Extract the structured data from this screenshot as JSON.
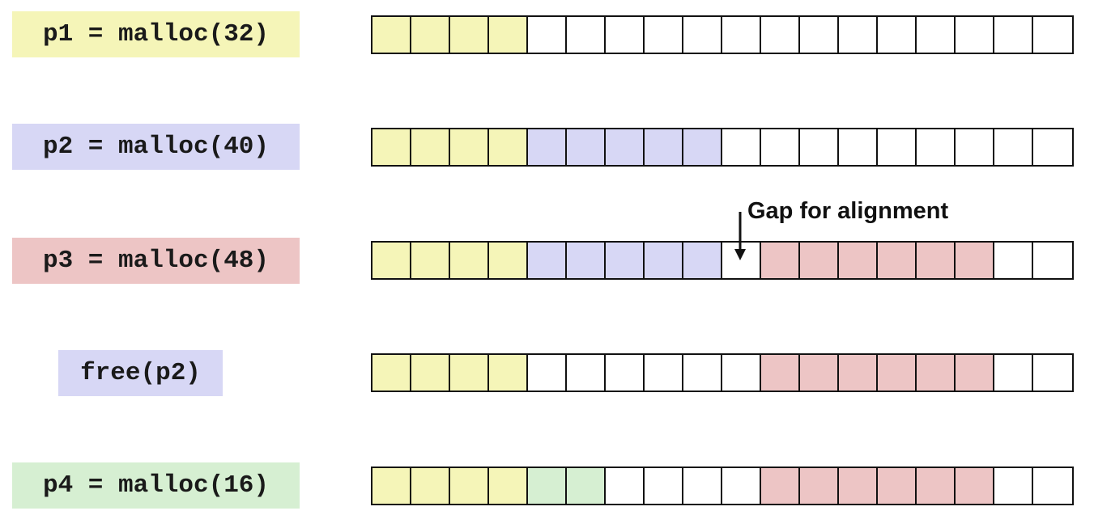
{
  "colors": {
    "p1": "#f5f5b8",
    "p2": "#d7d7f5",
    "p3": "#edc5c5",
    "p4": "#d6efd2",
    "free": "#ffffff"
  },
  "rows": [
    {
      "label": "p1 = malloc(32)",
      "label_color": "p1",
      "cells": [
        "p1",
        "p1",
        "p1",
        "p1",
        "free",
        "free",
        "free",
        "free",
        "free",
        "free",
        "free",
        "free",
        "free",
        "free",
        "free",
        "free",
        "free",
        "free"
      ]
    },
    {
      "label": "p2 = malloc(40)",
      "label_color": "p2",
      "cells": [
        "p1",
        "p1",
        "p1",
        "p1",
        "p2",
        "p2",
        "p2",
        "p2",
        "p2",
        "free",
        "free",
        "free",
        "free",
        "free",
        "free",
        "free",
        "free",
        "free"
      ]
    },
    {
      "label": "p3 = malloc(48)",
      "label_color": "p3",
      "cells": [
        "p1",
        "p1",
        "p1",
        "p1",
        "p2",
        "p2",
        "p2",
        "p2",
        "p2",
        "free",
        "p3",
        "p3",
        "p3",
        "p3",
        "p3",
        "p3",
        "free",
        "free"
      ]
    },
    {
      "label": "free(p2)",
      "label_color": "p2",
      "cells": [
        "p1",
        "p1",
        "p1",
        "p1",
        "free",
        "free",
        "free",
        "free",
        "free",
        "free",
        "p3",
        "p3",
        "p3",
        "p3",
        "p3",
        "p3",
        "free",
        "free"
      ]
    },
    {
      "label": "p4 = malloc(16)",
      "label_color": "p4",
      "cells": [
        "p1",
        "p1",
        "p1",
        "p1",
        "p4",
        "p4",
        "free",
        "free",
        "free",
        "free",
        "p3",
        "p3",
        "p3",
        "p3",
        "p3",
        "p3",
        "free",
        "free"
      ]
    }
  ],
  "annotation": {
    "text": "Gap for alignment",
    "arrow_icon": "down-arrow-icon"
  }
}
